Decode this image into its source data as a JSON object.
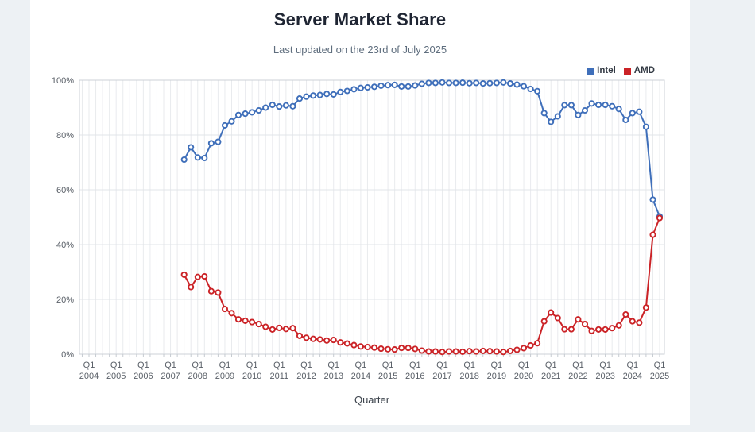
{
  "page": {
    "title": "Server Market Share",
    "subtitle": "Last updated on the 23rd of July 2025"
  },
  "legend": [
    {
      "label": "Intel",
      "color": "#3f6fba"
    },
    {
      "label": "AMD",
      "color": "#cb2327"
    }
  ],
  "axes": {
    "x_label": "Quarter",
    "y_tick_labels": [
      "0%",
      "20%",
      "40%",
      "60%",
      "80%",
      "100%"
    ],
    "x_tick_quarter": "Q1",
    "x_tick_years": [
      2004,
      2005,
      2006,
      2007,
      2008,
      2009,
      2010,
      2011,
      2012,
      2013,
      2014,
      2015,
      2016,
      2017,
      2018,
      2019,
      2020,
      2021,
      2022,
      2023,
      2024,
      2025
    ]
  },
  "chart_data": {
    "type": "line",
    "title": "Server Market Share",
    "subtitle": "Last updated on the 23rd of July 2025",
    "xlabel": "Quarter",
    "ylabel": "",
    "ylim": [
      0,
      100
    ],
    "y_ticks_percent": [
      0,
      20,
      40,
      60,
      80,
      100
    ],
    "grid": true,
    "legend_position": "top-right",
    "x_axis_start": "Q1 2004",
    "x_axis_end": "Q2 2025",
    "data_start_quarter": "Q3 2007",
    "data_frequency": "quarterly",
    "marker": "open-circle",
    "series": [
      {
        "name": "Intel",
        "color": "#3f6fba",
        "values": [
          71.0,
          75.5,
          71.8,
          71.6,
          77.0,
          77.5,
          83.5,
          85.0,
          87.3,
          87.8,
          88.3,
          89.0,
          90.0,
          91.0,
          90.4,
          90.8,
          90.5,
          93.3,
          94.0,
          94.4,
          94.6,
          95.0,
          94.8,
          95.7,
          96.1,
          96.7,
          97.2,
          97.4,
          97.6,
          98.0,
          98.2,
          98.3,
          97.7,
          97.7,
          98.1,
          98.7,
          99.0,
          99.0,
          99.2,
          99.0,
          99.0,
          99.1,
          98.9,
          99.0,
          98.8,
          98.9,
          99.0,
          99.2,
          98.8,
          98.4,
          97.8,
          96.8,
          96.0,
          88.0,
          84.8,
          86.8,
          90.9,
          90.9,
          87.3,
          89.0,
          91.5,
          91.0,
          91.0,
          90.5,
          89.5,
          85.5,
          88.0,
          88.5,
          83.0,
          56.4,
          50.3
        ]
      },
      {
        "name": "AMD",
        "color": "#cb2327",
        "values": [
          29.0,
          24.5,
          28.2,
          28.4,
          23.0,
          22.5,
          16.5,
          15.0,
          12.7,
          12.2,
          11.7,
          11.0,
          10.0,
          9.0,
          9.6,
          9.2,
          9.5,
          6.7,
          6.0,
          5.6,
          5.4,
          5.0,
          5.2,
          4.3,
          3.9,
          3.3,
          2.8,
          2.6,
          2.4,
          2.0,
          1.8,
          1.7,
          2.3,
          2.3,
          1.9,
          1.3,
          1.0,
          1.0,
          0.8,
          1.0,
          1.0,
          0.9,
          1.1,
          1.0,
          1.2,
          1.1,
          1.0,
          0.8,
          1.2,
          1.6,
          2.2,
          3.2,
          4.0,
          12.0,
          15.2,
          13.2,
          9.1,
          9.1,
          12.7,
          11.0,
          8.5,
          9.0,
          9.0,
          9.5,
          10.5,
          14.5,
          12.0,
          11.5,
          17.0,
          43.6,
          49.7
        ]
      }
    ]
  }
}
